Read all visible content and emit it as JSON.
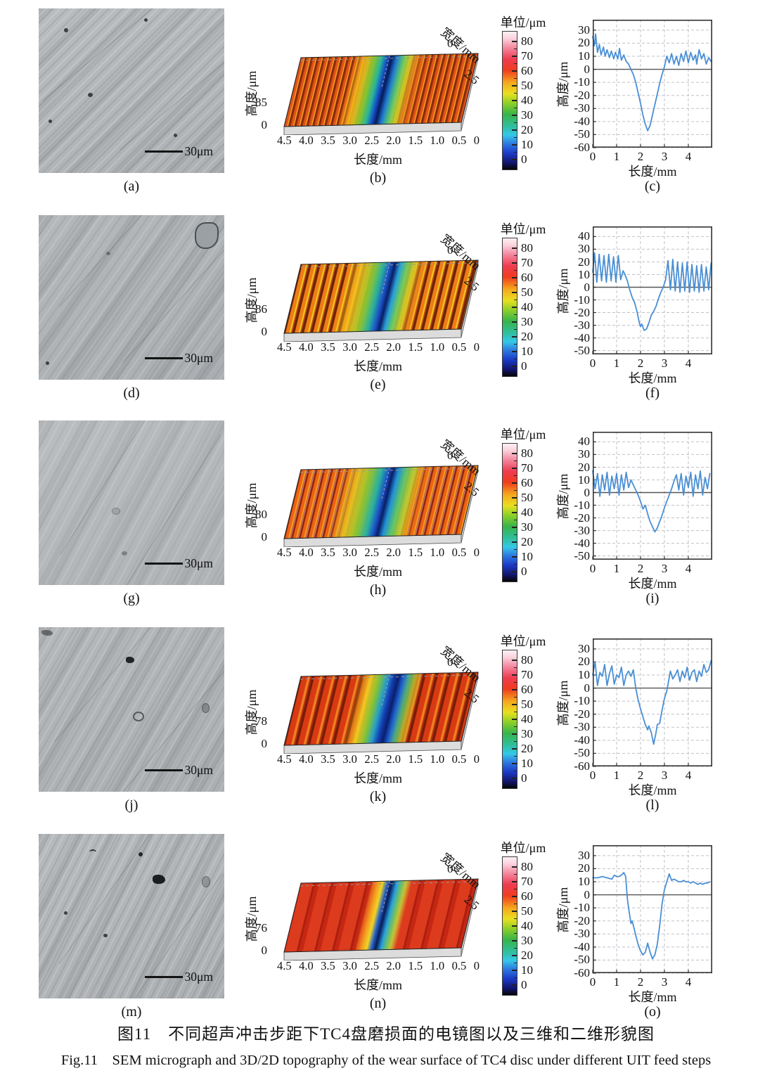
{
  "figure": {
    "caption_zh": "图11　不同超声冲击步距下TC4盘磨损面的电镜图以及三维和二维形貌图",
    "caption_en": "Fig.11　SEM micrograph and 3D/2D topography of the wear surface of TC4 disc under different UIT feed steps"
  },
  "colorbar_gradient": [
    [
      0.0,
      "#060606"
    ],
    [
      0.05,
      "#12166e"
    ],
    [
      0.12,
      "#1b3cc8"
    ],
    [
      0.19,
      "#2e7ce0"
    ],
    [
      0.25,
      "#35c8e8"
    ],
    [
      0.31,
      "#2fbfa0"
    ],
    [
      0.4,
      "#38b44a"
    ],
    [
      0.48,
      "#8cd028"
    ],
    [
      0.55,
      "#e8e020"
    ],
    [
      0.63,
      "#f5a81e"
    ],
    [
      0.72,
      "#f03c1e"
    ],
    [
      0.8,
      "#ee3c50"
    ],
    [
      0.88,
      "#f4849c"
    ],
    [
      0.95,
      "#fad2dc"
    ],
    [
      1.0,
      "#fdf0f4"
    ]
  ],
  "rows": [
    {
      "sem_label": "(a)",
      "scalebar": "30μm"
    },
    {
      "sem_label": "(d)",
      "scalebar": "30μm"
    },
    {
      "sem_label": "(g)",
      "scalebar": "30μm"
    },
    {
      "sem_label": "(j)",
      "scalebar": "30μm"
    },
    {
      "sem_label": "(m)",
      "scalebar": "30μm"
    }
  ],
  "chart_data": [
    {
      "type": "surface_3d",
      "panel": "(b)",
      "zlabel": "高度/μm",
      "z_max": "85",
      "z_min": "0",
      "xlabel": "长度/mm",
      "xticks": [
        "4.5",
        "4.0",
        "3.5",
        "3.0",
        "2.5",
        "2.0",
        "1.5",
        "1.0",
        "0.5",
        "0"
      ],
      "width_label": "宽度/mm",
      "width_ticks": [
        "0",
        "2.5"
      ],
      "colorbar": {
        "title": "单位/μm",
        "ticks": [
          80,
          70,
          60,
          50,
          40,
          30,
          20,
          10,
          0
        ],
        "range": [
          0,
          80
        ]
      }
    },
    {
      "type": "surface_3d",
      "panel": "(e)",
      "zlabel": "高度/μm",
      "z_max": "86",
      "z_min": "0",
      "xlabel": "长度/mm",
      "xticks": [
        "4.5",
        "4.0",
        "3.5",
        "3.0",
        "2.5",
        "2.0",
        "1.5",
        "1.0",
        "0.5",
        "0"
      ],
      "width_label": "宽度/mm",
      "width_ticks": [
        "0",
        "2.5"
      ],
      "colorbar": {
        "title": "单位/μm",
        "ticks": [
          80,
          70,
          60,
          50,
          40,
          30,
          20,
          10,
          0
        ],
        "range": [
          0,
          80
        ]
      }
    },
    {
      "type": "surface_3d",
      "panel": "(h)",
      "zlabel": "高度/μm",
      "z_max": "80",
      "z_min": "0",
      "xlabel": "长度/mm",
      "xticks": [
        "4.5",
        "4.0",
        "3.5",
        "3.0",
        "2.5",
        "2.0",
        "1.5",
        "1.0",
        "0.5",
        "0"
      ],
      "width_label": "宽度/mm",
      "width_ticks": [
        "0",
        "2.5"
      ],
      "colorbar": {
        "title": "单位/μm",
        "ticks": [
          80,
          70,
          60,
          50,
          40,
          30,
          20,
          10,
          0
        ],
        "range": [
          0,
          80
        ]
      }
    },
    {
      "type": "surface_3d",
      "panel": "(k)",
      "zlabel": "高度/μm",
      "z_max": "78",
      "z_min": "0",
      "xlabel": "长度/mm",
      "xticks": [
        "4.5",
        "4.0",
        "3.5",
        "3.0",
        "2.5",
        "2.0",
        "1.5",
        "1.0",
        "0.5",
        "0"
      ],
      "width_label": "宽度/mm",
      "width_ticks": [
        "0",
        "2.5"
      ],
      "colorbar": {
        "title": "单位/μm",
        "ticks": [
          80,
          70,
          60,
          50,
          40,
          30,
          20,
          10,
          0
        ],
        "range": [
          0,
          80
        ]
      }
    },
    {
      "type": "surface_3d",
      "panel": "(n)",
      "zlabel": "高度/μm",
      "z_max": "76",
      "z_min": "0",
      "xlabel": "长度/mm",
      "xticks": [
        "4.5",
        "4.0",
        "3.5",
        "3.0",
        "2.5",
        "2.0",
        "1.5",
        "1.0",
        "0.5",
        "0"
      ],
      "width_label": "宽度/mm",
      "width_ticks": [
        "0",
        "2.5"
      ],
      "colorbar": {
        "title": "单位/μm",
        "ticks": [
          80,
          70,
          60,
          50,
          40,
          30,
          20,
          10,
          0
        ],
        "range": [
          0,
          80
        ]
      }
    },
    {
      "type": "line",
      "panel": "(c)",
      "xlabel": "长度/mm",
      "ylabel": "高度/μm",
      "color": "#4a8fd4",
      "xlim": [
        0,
        5
      ],
      "xticks": [
        0,
        1,
        2,
        3,
        4
      ],
      "ylim": [
        -60,
        38
      ],
      "yticks": [
        30,
        20,
        10,
        0,
        -10,
        -20,
        -30,
        -40,
        -50,
        -60
      ],
      "points": [
        [
          0,
          25
        ],
        [
          0.07,
          18
        ],
        [
          0.12,
          27
        ],
        [
          0.2,
          13
        ],
        [
          0.28,
          19
        ],
        [
          0.35,
          11
        ],
        [
          0.45,
          17
        ],
        [
          0.52,
          10
        ],
        [
          0.6,
          15
        ],
        [
          0.7,
          9
        ],
        [
          0.78,
          14
        ],
        [
          0.88,
          8
        ],
        [
          0.95,
          13
        ],
        [
          1.05,
          8
        ],
        [
          1.12,
          16
        ],
        [
          1.2,
          7
        ],
        [
          1.3,
          11
        ],
        [
          1.4,
          6
        ],
        [
          1.5,
          4
        ],
        [
          1.6,
          0
        ],
        [
          1.7,
          -4
        ],
        [
          1.8,
          -10
        ],
        [
          1.9,
          -18
        ],
        [
          2.0,
          -26
        ],
        [
          2.1,
          -35
        ],
        [
          2.2,
          -42
        ],
        [
          2.3,
          -47
        ],
        [
          2.4,
          -43
        ],
        [
          2.5,
          -35
        ],
        [
          2.6,
          -27
        ],
        [
          2.7,
          -19
        ],
        [
          2.8,
          -11
        ],
        [
          2.9,
          -4
        ],
        [
          3.0,
          2
        ],
        [
          3.1,
          10
        ],
        [
          3.2,
          5
        ],
        [
          3.3,
          12
        ],
        [
          3.4,
          4
        ],
        [
          3.5,
          10
        ],
        [
          3.6,
          3
        ],
        [
          3.7,
          12
        ],
        [
          3.8,
          6
        ],
        [
          3.9,
          14
        ],
        [
          4.0,
          5
        ],
        [
          4.1,
          13
        ],
        [
          4.2,
          7
        ],
        [
          4.3,
          11
        ],
        [
          4.35,
          4
        ],
        [
          4.45,
          15
        ],
        [
          4.55,
          8
        ],
        [
          4.65,
          12
        ],
        [
          4.75,
          4
        ],
        [
          4.85,
          9
        ],
        [
          4.95,
          6
        ]
      ]
    },
    {
      "type": "line",
      "panel": "(f)",
      "xlabel": "长度/mm",
      "ylabel": "高度/μm",
      "color": "#4a8fd4",
      "xlim": [
        0,
        5
      ],
      "xticks": [
        0,
        1,
        2,
        3,
        4
      ],
      "ylim": [
        -53,
        48
      ],
      "yticks": [
        40,
        30,
        20,
        10,
        0,
        -10,
        -20,
        -30,
        -40,
        -50
      ],
      "points": [
        [
          0,
          12
        ],
        [
          0.08,
          27
        ],
        [
          0.17,
          4
        ],
        [
          0.27,
          26
        ],
        [
          0.37,
          5
        ],
        [
          0.47,
          25
        ],
        [
          0.57,
          4
        ],
        [
          0.67,
          26
        ],
        [
          0.77,
          5
        ],
        [
          0.87,
          24
        ],
        [
          0.97,
          4
        ],
        [
          1.07,
          25
        ],
        [
          1.17,
          6
        ],
        [
          1.27,
          13
        ],
        [
          1.35,
          10
        ],
        [
          1.45,
          5
        ],
        [
          1.55,
          -2
        ],
        [
          1.65,
          -8
        ],
        [
          1.75,
          -12
        ],
        [
          1.85,
          -19
        ],
        [
          1.95,
          -28
        ],
        [
          2.0,
          -31
        ],
        [
          2.05,
          -29
        ],
        [
          2.15,
          -34
        ],
        [
          2.25,
          -33
        ],
        [
          2.35,
          -28
        ],
        [
          2.45,
          -22
        ],
        [
          2.55,
          -19
        ],
        [
          2.65,
          -15
        ],
        [
          2.75,
          -9
        ],
        [
          2.85,
          -4
        ],
        [
          2.95,
          0
        ],
        [
          3.05,
          6
        ],
        [
          3.15,
          21
        ],
        [
          3.25,
          -2
        ],
        [
          3.35,
          22
        ],
        [
          3.45,
          -3
        ],
        [
          3.55,
          20
        ],
        [
          3.65,
          -4
        ],
        [
          3.75,
          19
        ],
        [
          3.85,
          -3
        ],
        [
          3.95,
          20
        ],
        [
          4.05,
          -4
        ],
        [
          4.15,
          18
        ],
        [
          4.25,
          -3
        ],
        [
          4.35,
          17
        ],
        [
          4.45,
          -4
        ],
        [
          4.55,
          18
        ],
        [
          4.65,
          -3
        ],
        [
          4.75,
          16
        ],
        [
          4.85,
          -2
        ],
        [
          4.95,
          19
        ]
      ]
    },
    {
      "type": "line",
      "panel": "(i)",
      "xlabel": "长度/mm",
      "ylabel": "高度/μm",
      "color": "#4a8fd4",
      "xlim": [
        0,
        5
      ],
      "xticks": [
        0,
        1,
        2,
        3,
        4
      ],
      "ylim": [
        -53,
        48
      ],
      "yticks": [
        40,
        30,
        20,
        10,
        0,
        -10,
        -20,
        -30,
        -40,
        -50
      ],
      "points": [
        [
          0,
          17
        ],
        [
          0.1,
          3
        ],
        [
          0.2,
          15
        ],
        [
          0.3,
          -3
        ],
        [
          0.4,
          14
        ],
        [
          0.5,
          2
        ],
        [
          0.6,
          16
        ],
        [
          0.7,
          -2
        ],
        [
          0.8,
          13
        ],
        [
          0.9,
          3
        ],
        [
          1.0,
          15
        ],
        [
          1.1,
          -2
        ],
        [
          1.2,
          14
        ],
        [
          1.3,
          2
        ],
        [
          1.4,
          16
        ],
        [
          1.5,
          4
        ],
        [
          1.6,
          10
        ],
        [
          1.7,
          6
        ],
        [
          1.8,
          2
        ],
        [
          1.9,
          -2
        ],
        [
          2.0,
          -7
        ],
        [
          2.1,
          -13
        ],
        [
          2.2,
          -10
        ],
        [
          2.3,
          -17
        ],
        [
          2.4,
          -23
        ],
        [
          2.5,
          -27
        ],
        [
          2.6,
          -31
        ],
        [
          2.7,
          -28
        ],
        [
          2.8,
          -23
        ],
        [
          2.9,
          -18
        ],
        [
          3.0,
          -12
        ],
        [
          3.1,
          -7
        ],
        [
          3.2,
          -2
        ],
        [
          3.3,
          3
        ],
        [
          3.4,
          9
        ],
        [
          3.5,
          14
        ],
        [
          3.6,
          2
        ],
        [
          3.7,
          15
        ],
        [
          3.8,
          -2
        ],
        [
          3.9,
          13
        ],
        [
          4.0,
          4
        ],
        [
          4.1,
          16
        ],
        [
          4.2,
          -3
        ],
        [
          4.3,
          14
        ],
        [
          4.4,
          3
        ],
        [
          4.5,
          17
        ],
        [
          4.6,
          -2
        ],
        [
          4.7,
          12
        ],
        [
          4.8,
          3
        ],
        [
          4.9,
          15
        ]
      ]
    },
    {
      "type": "line",
      "panel": "(l)",
      "xlabel": "长度/mm",
      "ylabel": "高度/μm",
      "color": "#4a8fd4",
      "xlim": [
        0,
        5
      ],
      "xticks": [
        0,
        1,
        2,
        3,
        4
      ],
      "ylim": [
        -60,
        38
      ],
      "yticks": [
        30,
        20,
        10,
        0,
        -10,
        -20,
        -30,
        -40,
        -50,
        -60
      ],
      "points": [
        [
          0,
          10
        ],
        [
          0.1,
          20
        ],
        [
          0.2,
          2
        ],
        [
          0.3,
          12
        ],
        [
          0.4,
          9
        ],
        [
          0.5,
          18
        ],
        [
          0.6,
          2
        ],
        [
          0.7,
          11
        ],
        [
          0.8,
          17
        ],
        [
          0.9,
          3
        ],
        [
          1.0,
          10
        ],
        [
          1.1,
          8
        ],
        [
          1.2,
          16
        ],
        [
          1.3,
          2
        ],
        [
          1.4,
          10
        ],
        [
          1.5,
          13
        ],
        [
          1.6,
          9
        ],
        [
          1.7,
          14
        ],
        [
          1.8,
          0
        ],
        [
          1.9,
          -9
        ],
        [
          2.0,
          -16
        ],
        [
          2.1,
          -22
        ],
        [
          2.2,
          -28
        ],
        [
          2.3,
          -32
        ],
        [
          2.35,
          -29
        ],
        [
          2.45,
          -34
        ],
        [
          2.55,
          -43
        ],
        [
          2.65,
          -34
        ],
        [
          2.7,
          -28
        ],
        [
          2.8,
          -27
        ],
        [
          2.9,
          -17
        ],
        [
          3.0,
          -8
        ],
        [
          3.1,
          -2
        ],
        [
          3.2,
          8
        ],
        [
          3.25,
          13
        ],
        [
          3.35,
          7
        ],
        [
          3.45,
          10
        ],
        [
          3.55,
          14
        ],
        [
          3.65,
          5
        ],
        [
          3.75,
          13
        ],
        [
          3.85,
          8
        ],
        [
          3.95,
          16
        ],
        [
          4.05,
          6
        ],
        [
          4.15,
          12
        ],
        [
          4.25,
          14
        ],
        [
          4.35,
          5
        ],
        [
          4.45,
          13
        ],
        [
          4.55,
          9
        ],
        [
          4.65,
          18
        ],
        [
          4.75,
          12
        ],
        [
          4.85,
          14
        ],
        [
          4.95,
          21
        ]
      ]
    },
    {
      "type": "line",
      "panel": "(o)",
      "xlabel": "长度/mm",
      "ylabel": "高度/μm",
      "color": "#4a8fd4",
      "xlim": [
        0,
        5
      ],
      "xticks": [
        0,
        1,
        2,
        3,
        4
      ],
      "ylim": [
        -60,
        38
      ],
      "yticks": [
        30,
        20,
        10,
        0,
        -10,
        -20,
        -30,
        -40,
        -50,
        -60
      ],
      "points": [
        [
          0,
          13
        ],
        [
          0.2,
          13
        ],
        [
          0.4,
          14
        ],
        [
          0.6,
          13
        ],
        [
          0.8,
          12
        ],
        [
          0.9,
          15
        ],
        [
          1.0,
          14
        ],
        [
          1.1,
          14
        ],
        [
          1.2,
          15
        ],
        [
          1.3,
          17
        ],
        [
          1.38,
          14
        ],
        [
          1.45,
          -3
        ],
        [
          1.5,
          -10
        ],
        [
          1.55,
          -16
        ],
        [
          1.6,
          -22
        ],
        [
          1.65,
          -20
        ],
        [
          1.72,
          -25
        ],
        [
          1.8,
          -31
        ],
        [
          1.9,
          -38
        ],
        [
          2.0,
          -43
        ],
        [
          2.1,
          -46
        ],
        [
          2.2,
          -44
        ],
        [
          2.3,
          -37
        ],
        [
          2.4,
          -44
        ],
        [
          2.5,
          -49
        ],
        [
          2.6,
          -46
        ],
        [
          2.7,
          -38
        ],
        [
          2.8,
          -24
        ],
        [
          2.9,
          -7
        ],
        [
          3.0,
          4
        ],
        [
          3.1,
          10
        ],
        [
          3.2,
          16
        ],
        [
          3.3,
          11
        ],
        [
          3.4,
          12
        ],
        [
          3.5,
          11
        ],
        [
          3.6,
          10
        ],
        [
          3.7,
          10
        ],
        [
          3.8,
          11
        ],
        [
          3.9,
          10
        ],
        [
          4.0,
          10
        ],
        [
          4.1,
          9
        ],
        [
          4.2,
          10
        ],
        [
          4.3,
          9
        ],
        [
          4.4,
          8
        ],
        [
          4.5,
          9
        ],
        [
          4.6,
          8
        ],
        [
          4.7,
          9
        ],
        [
          4.8,
          9
        ],
        [
          4.9,
          10
        ]
      ]
    }
  ]
}
